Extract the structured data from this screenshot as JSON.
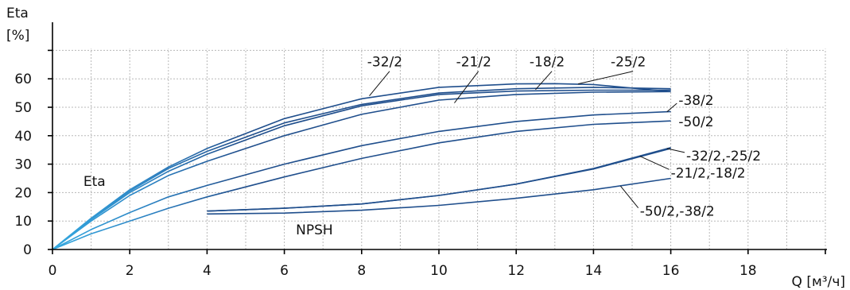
{
  "chart_data": {
    "type": "line",
    "xlabel": "Q [м³/ч]",
    "ylabel_line1": "Eta",
    "ylabel_line2": "[%]",
    "xlim": [
      0,
      20
    ],
    "ylim": [
      0,
      70
    ],
    "xticks": [
      0,
      2,
      4,
      6,
      8,
      10,
      12,
      14,
      16,
      18
    ],
    "yticks": [
      0,
      10,
      20,
      30,
      40,
      50,
      60
    ],
    "grid": true,
    "group_labels": {
      "eta": "Eta",
      "npsh": "NPSH"
    },
    "series": [
      {
        "name": "-32/2",
        "group": "eta",
        "x": [
          0,
          1,
          2,
          3,
          4,
          6,
          8,
          10,
          12,
          13,
          14,
          16
        ],
        "y": [
          0,
          11,
          21,
          29,
          35.5,
          46,
          53,
          57,
          58.2,
          58.3,
          58,
          55.5
        ]
      },
      {
        "name": "-21/2",
        "group": "eta",
        "x": [
          0,
          1,
          2,
          3,
          4,
          6,
          8,
          10,
          12,
          14,
          16
        ],
        "y": [
          0,
          10.5,
          20,
          27.5,
          33.5,
          43.5,
          50.5,
          54.5,
          55.7,
          56,
          56
        ]
      },
      {
        "name": "-18/2",
        "group": "eta",
        "x": [
          0,
          1,
          2,
          3,
          4,
          6,
          8,
          10,
          12,
          14,
          16
        ],
        "y": [
          0,
          10.8,
          20.5,
          28.5,
          34.5,
          44.5,
          51,
          55,
          56.5,
          57,
          56.5
        ]
      },
      {
        "name": "-25/2",
        "group": "eta",
        "x": [
          0,
          1,
          2,
          3,
          4,
          6,
          8,
          10,
          12,
          14,
          16
        ],
        "y": [
          0,
          10,
          19,
          26,
          31,
          40,
          47.5,
          52.5,
          54.5,
          55.3,
          55.5
        ]
      },
      {
        "name": "-38/2",
        "group": "eta",
        "x": [
          0,
          1,
          2,
          3,
          4,
          6,
          8,
          10,
          12,
          14,
          16
        ],
        "y": [
          0,
          7,
          13,
          18.5,
          22.5,
          30,
          36.5,
          41.5,
          45,
          47.3,
          48.5
        ]
      },
      {
        "name": "-50/2",
        "group": "eta",
        "x": [
          0,
          1,
          2,
          3,
          4,
          6,
          8,
          10,
          12,
          14,
          16
        ],
        "y": [
          0,
          5.5,
          10,
          14.5,
          18.5,
          25.5,
          32,
          37.5,
          41.5,
          44,
          45.2
        ]
      },
      {
        "name": "-32/2,-25/2",
        "group": "npsh",
        "x": [
          4,
          6,
          8,
          10,
          12,
          14,
          16
        ],
        "y": [
          13.5,
          14.5,
          16,
          19,
          23,
          28.5,
          35.8
        ]
      },
      {
        "name": "-21/2,-18/2",
        "group": "npsh",
        "x": [
          4,
          6,
          8,
          10,
          12,
          14,
          16
        ],
        "y": [
          13.5,
          14.5,
          16,
          19,
          23,
          28.3,
          35.5
        ]
      },
      {
        "name": "-50/2,-38/2",
        "group": "npsh",
        "x": [
          4,
          6,
          8,
          10,
          12,
          14,
          16
        ],
        "y": [
          12.5,
          12.8,
          13.8,
          15.5,
          18,
          21,
          25
        ]
      }
    ],
    "annotations": [
      {
        "series": "-32/2",
        "label_x": 8.6,
        "label_y": 66,
        "at_x": 8.2,
        "at_y": 54.0
      },
      {
        "series": "-21/2",
        "label_x": 10.9,
        "label_y": 66,
        "at_x": 10.4,
        "at_y": 51.5
      },
      {
        "series": "-18/2",
        "label_x": 12.8,
        "label_y": 66,
        "at_x": 12.5,
        "at_y": 56.2
      },
      {
        "series": "-25/2",
        "label_x": 14.9,
        "label_y": 66,
        "at_x": 13.6,
        "at_y": 58.2
      },
      {
        "series": "-38/2",
        "label_x": 16.2,
        "label_y": 52.5,
        "at_x": 15.9,
        "at_y": 48.4
      },
      {
        "series": "-50/2",
        "label_x": 16.2,
        "label_y": 45,
        "at_x": null,
        "at_y": null
      },
      {
        "series": "-32/2,-25/2",
        "label_x": 16.4,
        "label_y": 33,
        "at_x": 15.9,
        "at_y": 35.5
      },
      {
        "series": "-21/2,-18/2",
        "label_x": 16.0,
        "label_y": 27,
        "at_x": 15.2,
        "at_y": 32.8
      },
      {
        "series": "-50/2,-38/2",
        "label_x": 15.2,
        "label_y": 13.5,
        "at_x": 14.7,
        "at_y": 22.3
      }
    ],
    "group_label_positions": {
      "eta": {
        "x": 0.8,
        "y": 24
      },
      "npsh": {
        "x": 6.3,
        "y": 7
      }
    },
    "colors": {
      "curve_dark": "#1f4e8c",
      "curve_light": "#35a9e0"
    }
  }
}
